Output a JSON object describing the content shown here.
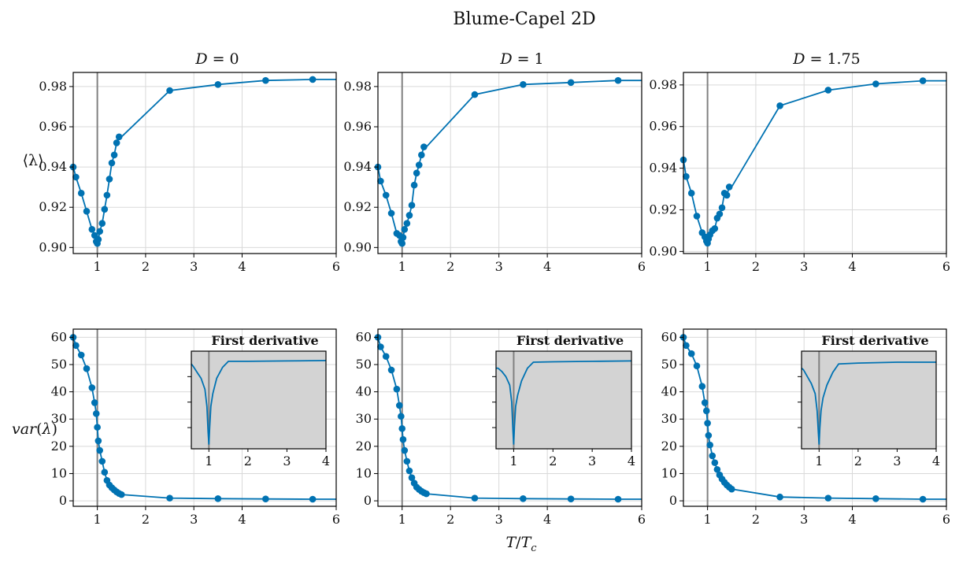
{
  "figure": {
    "suptitle": "Blume-Capel 2D",
    "xlabel": "T/T_c",
    "ylabel_top": "⟨λ⟩",
    "ylabel_bottom": "var(λ)",
    "inset_title": "First derivative"
  },
  "colors": {
    "series": "#0072b2",
    "vline": "#808080",
    "grid": "#d9d9d9",
    "inset_bg": "#d3d3d3",
    "axis": "#000000"
  },
  "chart_data": [
    {
      "type": "line",
      "panel": "mean-D0",
      "title": "D = 0",
      "xlim": [
        0.55,
        6
      ],
      "ylim": [
        0.897,
        0.987
      ],
      "xticks": [
        1,
        2,
        3,
        4,
        6
      ],
      "yticks": [
        0.9,
        0.92,
        0.94,
        0.96,
        0.98
      ],
      "ytick_labels": [
        "0.90",
        "0.92",
        "0.94",
        "0.96",
        "0.98"
      ],
      "xscale": "nonlinear",
      "grid": true,
      "vline_x": 1,
      "x": [
        0.55,
        0.6,
        0.7,
        0.8,
        0.9,
        0.95,
        0.98,
        1.0,
        1.02,
        1.05,
        1.1,
        1.15,
        1.2,
        1.25,
        1.3,
        1.35,
        1.4,
        1.45,
        1.5,
        2.5,
        3.5,
        4.5,
        5.5,
        6.0
      ],
      "y": [
        0.94,
        0.935,
        0.927,
        0.918,
        0.909,
        0.906,
        0.903,
        0.902,
        0.904,
        0.908,
        0.912,
        0.919,
        0.926,
        0.934,
        0.942,
        0.946,
        0.952,
        0.955,
        0.955,
        0.978,
        0.981,
        0.983,
        0.9835,
        0.9835
      ],
      "markers": [
        true,
        true,
        true,
        true,
        true,
        true,
        true,
        true,
        true,
        true,
        true,
        true,
        true,
        true,
        true,
        true,
        true,
        true,
        false,
        true,
        true,
        true,
        true,
        false
      ]
    },
    {
      "type": "line",
      "panel": "mean-D1",
      "title": "D = 1",
      "xlim": [
        0.55,
        6
      ],
      "ylim": [
        0.897,
        0.987
      ],
      "xticks": [
        1,
        2,
        3,
        4,
        6
      ],
      "yticks": [
        0.9,
        0.92,
        0.94,
        0.96,
        0.98
      ],
      "ytick_labels": [
        "0.90",
        "0.92",
        "0.94",
        "0.96",
        "0.98"
      ],
      "xscale": "nonlinear",
      "grid": true,
      "vline_x": 1,
      "x": [
        0.55,
        0.6,
        0.7,
        0.8,
        0.9,
        0.95,
        0.98,
        1.0,
        1.02,
        1.05,
        1.1,
        1.15,
        1.2,
        1.25,
        1.3,
        1.35,
        1.4,
        1.45,
        1.5,
        2.5,
        3.5,
        4.5,
        5.5,
        6.0
      ],
      "y": [
        0.94,
        0.933,
        0.926,
        0.917,
        0.907,
        0.906,
        0.903,
        0.902,
        0.905,
        0.909,
        0.912,
        0.916,
        0.921,
        0.931,
        0.937,
        0.941,
        0.946,
        0.95,
        0.95,
        0.976,
        0.981,
        0.982,
        0.983,
        0.983
      ],
      "markers": [
        true,
        true,
        true,
        true,
        true,
        true,
        true,
        true,
        true,
        true,
        true,
        true,
        true,
        true,
        true,
        true,
        true,
        true,
        false,
        true,
        true,
        true,
        true,
        false
      ]
    },
    {
      "type": "line",
      "panel": "mean-D175",
      "title": "D = 1.75",
      "xlim": [
        0.55,
        6
      ],
      "ylim": [
        0.899,
        0.986
      ],
      "xticks": [
        1,
        2,
        3,
        4,
        6
      ],
      "yticks": [
        0.9,
        0.92,
        0.94,
        0.96,
        0.98
      ],
      "ytick_labels": [
        "0.90",
        "0.92",
        "0.94",
        "0.96",
        "0.98"
      ],
      "xscale": "nonlinear",
      "grid": true,
      "vline_x": 1,
      "x": [
        0.55,
        0.6,
        0.7,
        0.8,
        0.9,
        0.95,
        0.98,
        1.0,
        1.02,
        1.05,
        1.1,
        1.15,
        1.2,
        1.25,
        1.3,
        1.35,
        1.4,
        1.45,
        1.5,
        2.5,
        3.5,
        4.5,
        5.5,
        6.0
      ],
      "y": [
        0.944,
        0.936,
        0.928,
        0.917,
        0.909,
        0.907,
        0.905,
        0.904,
        0.906,
        0.908,
        0.91,
        0.911,
        0.916,
        0.918,
        0.921,
        0.928,
        0.927,
        0.931,
        0.931,
        0.97,
        0.9775,
        0.9805,
        0.982,
        0.982
      ],
      "markers": [
        true,
        true,
        true,
        true,
        true,
        true,
        true,
        true,
        true,
        true,
        true,
        true,
        true,
        true,
        true,
        true,
        true,
        true,
        false,
        true,
        true,
        true,
        true,
        false
      ]
    },
    {
      "type": "line",
      "panel": "var-D0",
      "xlim": [
        0.55,
        6
      ],
      "ylim": [
        -2,
        63
      ],
      "xticks": [
        1,
        2,
        3,
        4,
        6
      ],
      "yticks": [
        0,
        10,
        20,
        30,
        40,
        50,
        60
      ],
      "ytick_labels": [
        "0",
        "10",
        "20",
        "30",
        "40",
        "50",
        "60"
      ],
      "xscale": "nonlinear",
      "grid": true,
      "vline_x": 1,
      "x": [
        0.55,
        0.6,
        0.7,
        0.8,
        0.9,
        0.95,
        0.98,
        1.0,
        1.02,
        1.05,
        1.1,
        1.15,
        1.2,
        1.25,
        1.3,
        1.35,
        1.4,
        1.45,
        1.5,
        2.5,
        3.5,
        4.5,
        5.5,
        6.0
      ],
      "y": [
        60,
        57,
        53.5,
        48.5,
        41.5,
        36,
        32,
        27,
        22,
        18.5,
        14.5,
        10.5,
        7.5,
        5.8,
        4.8,
        4.0,
        3.3,
        2.7,
        2.3,
        1.0,
        0.8,
        0.7,
        0.6,
        0.6
      ],
      "markers": [
        true,
        true,
        true,
        true,
        true,
        true,
        true,
        true,
        true,
        true,
        true,
        true,
        true,
        true,
        true,
        true,
        true,
        true,
        true,
        true,
        true,
        true,
        true,
        false
      ],
      "inset": {
        "title": "First derivative",
        "xlim": [
          0.55,
          4
        ],
        "xticks": [
          1,
          2,
          3,
          4
        ],
        "ylim": [
          -1.05,
          0.1
        ],
        "ytick_marks": [
          -0.8,
          -0.5,
          -0.2
        ],
        "x": [
          0.55,
          0.6,
          0.7,
          0.8,
          0.9,
          0.95,
          0.98,
          1.0,
          1.02,
          1.05,
          1.1,
          1.2,
          1.35,
          1.5,
          2.0,
          3.0,
          4.0
        ],
        "y": [
          -0.05,
          -0.08,
          -0.15,
          -0.22,
          -0.35,
          -0.55,
          -0.85,
          -1.0,
          -0.8,
          -0.55,
          -0.4,
          -0.22,
          -0.09,
          -0.02,
          -0.02,
          -0.015,
          -0.01
        ]
      }
    },
    {
      "type": "line",
      "panel": "var-D1",
      "xlim": [
        0.55,
        6
      ],
      "ylim": [
        -2,
        63
      ],
      "xticks": [
        1,
        2,
        3,
        4,
        6
      ],
      "yticks": [
        0,
        10,
        20,
        30,
        40,
        50,
        60
      ],
      "ytick_labels": [
        "0",
        "10",
        "20",
        "30",
        "40",
        "50",
        "60"
      ],
      "xscale": "nonlinear",
      "grid": true,
      "vline_x": 1,
      "x": [
        0.55,
        0.6,
        0.7,
        0.8,
        0.9,
        0.95,
        0.98,
        1.0,
        1.02,
        1.05,
        1.1,
        1.15,
        1.2,
        1.25,
        1.3,
        1.35,
        1.4,
        1.45,
        1.5,
        2.5,
        3.5,
        4.5,
        5.5,
        6.0
      ],
      "y": [
        60,
        56.5,
        53,
        48,
        41,
        35,
        31,
        26.5,
        22.5,
        18.5,
        14.5,
        11,
        8.5,
        6.5,
        5.0,
        4.2,
        3.5,
        3.0,
        2.6,
        1.0,
        0.8,
        0.7,
        0.6,
        0.6
      ],
      "markers": [
        true,
        true,
        true,
        true,
        true,
        true,
        true,
        true,
        true,
        true,
        true,
        true,
        true,
        true,
        true,
        true,
        true,
        true,
        true,
        true,
        true,
        true,
        true,
        false
      ],
      "inset": {
        "title": "First derivative",
        "xlim": [
          0.55,
          4
        ],
        "xticks": [
          1,
          2,
          3,
          4
        ],
        "ylim": [
          -1.05,
          0.1
        ],
        "ytick_marks": [
          -0.8,
          -0.5,
          -0.2
        ],
        "x": [
          0.55,
          0.6,
          0.7,
          0.8,
          0.9,
          0.95,
          0.98,
          1.0,
          1.02,
          1.05,
          1.1,
          1.2,
          1.35,
          1.5,
          2.0,
          3.0,
          4.0
        ],
        "y": [
          -0.1,
          -0.1,
          -0.14,
          -0.2,
          -0.3,
          -0.5,
          -0.82,
          -1.0,
          -0.78,
          -0.55,
          -0.42,
          -0.25,
          -0.1,
          -0.03,
          -0.025,
          -0.02,
          -0.015
        ]
      }
    },
    {
      "type": "line",
      "panel": "var-D175",
      "xlim": [
        0.55,
        6
      ],
      "ylim": [
        -2,
        63
      ],
      "xticks": [
        1,
        2,
        3,
        4,
        6
      ],
      "yticks": [
        0,
        10,
        20,
        30,
        40,
        50,
        60
      ],
      "ytick_labels": [
        "0",
        "10",
        "20",
        "30",
        "40",
        "50",
        "60"
      ],
      "xscale": "nonlinear",
      "grid": true,
      "vline_x": 1,
      "x": [
        0.55,
        0.6,
        0.7,
        0.8,
        0.9,
        0.95,
        0.98,
        1.0,
        1.02,
        1.05,
        1.1,
        1.15,
        1.2,
        1.25,
        1.3,
        1.35,
        1.4,
        1.45,
        1.5,
        2.5,
        3.5,
        4.5,
        5.5,
        6.0
      ],
      "y": [
        60,
        57,
        54,
        49.5,
        42,
        36,
        33,
        28.5,
        24,
        20.5,
        16.5,
        14,
        11.5,
        9.5,
        8,
        6.8,
        5.8,
        5,
        4.3,
        1.4,
        1.0,
        0.8,
        0.6,
        0.6
      ],
      "markers": [
        true,
        true,
        true,
        true,
        true,
        true,
        true,
        true,
        true,
        true,
        true,
        true,
        true,
        true,
        true,
        true,
        true,
        true,
        true,
        true,
        true,
        true,
        true,
        false
      ],
      "inset": {
        "title": "First derivative",
        "xlim": [
          0.55,
          4
        ],
        "xticks": [
          1,
          2,
          3,
          4
        ],
        "ylim": [
          -1.05,
          0.1
        ],
        "ytick_marks": [
          -0.8,
          -0.5,
          -0.2
        ],
        "x": [
          0.55,
          0.6,
          0.7,
          0.8,
          0.9,
          0.95,
          0.98,
          1.0,
          1.02,
          1.05,
          1.1,
          1.2,
          1.35,
          1.5,
          2.0,
          3.0,
          4.0
        ],
        "y": [
          -0.1,
          -0.12,
          -0.2,
          -0.28,
          -0.4,
          -0.6,
          -0.85,
          -1.0,
          -0.8,
          -0.6,
          -0.45,
          -0.3,
          -0.15,
          -0.05,
          -0.04,
          -0.03,
          -0.03
        ]
      }
    }
  ]
}
